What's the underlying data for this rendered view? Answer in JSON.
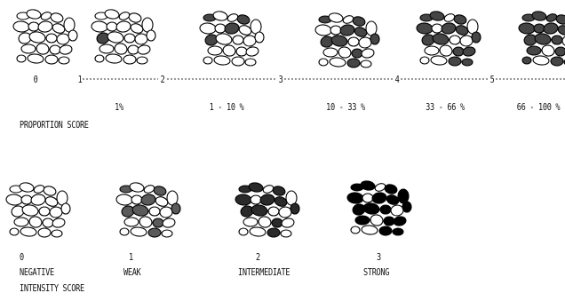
{
  "proportion_scale": {
    "score_marks": [
      "0",
      "1",
      "2",
      "3",
      "4",
      "5"
    ],
    "percent_labels": [
      "1%",
      "1 - 10 %",
      "10 - 33 %",
      "33 - 66 %",
      "66 - 100 %"
    ],
    "title": "PROPORTION SCORE"
  },
  "intensity_scale": {
    "scores": [
      "0",
      "1",
      "2",
      "3"
    ],
    "labels": [
      "NEGATIVE",
      "WEAK",
      "INTERMEDIATE",
      "STRONG"
    ],
    "title": "INTENSITY SCORE"
  },
  "colors": {
    "stain_medium": "#454545",
    "stain_strong": "#000000"
  }
}
